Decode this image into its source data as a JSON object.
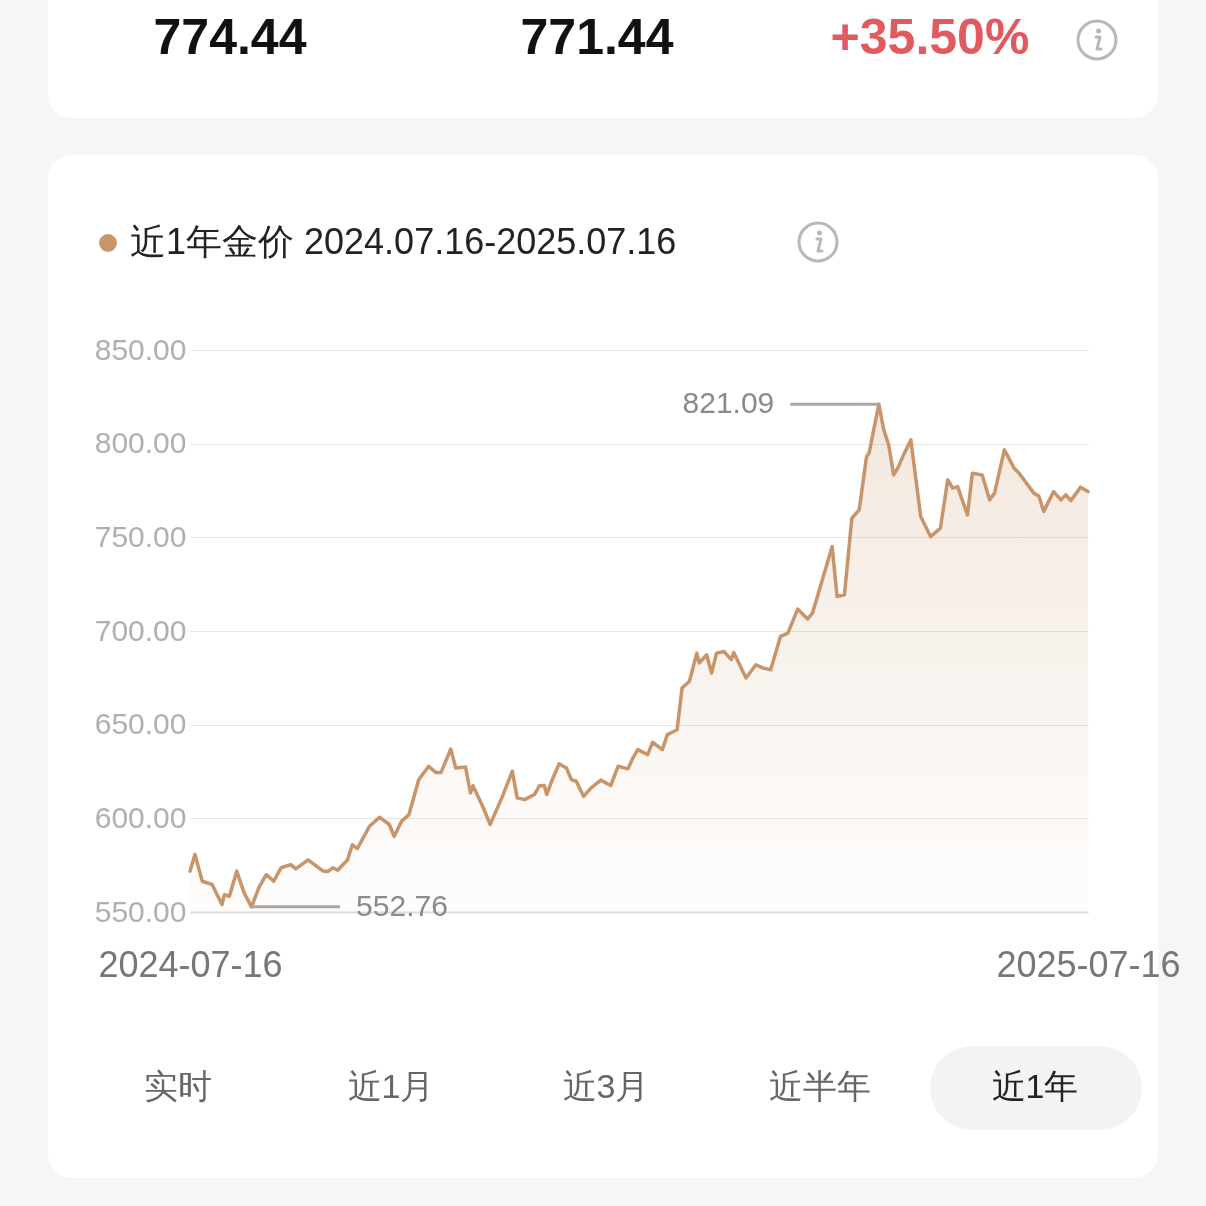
{
  "chart_data": {
    "type": "area",
    "x": [
      "2024-07-16",
      "2024-07-18",
      "2024-07-21",
      "2024-07-25",
      "2024-07-29",
      "2024-07-30",
      "2024-08-01",
      "2024-08-04",
      "2024-08-07",
      "2024-08-10",
      "2024-08-13",
      "2024-08-16",
      "2024-08-19",
      "2024-08-22",
      "2024-08-26",
      "2024-08-28",
      "2024-09-02",
      "2024-09-08",
      "2024-09-10",
      "2024-09-12",
      "2024-09-14",
      "2024-09-18",
      "2024-09-20",
      "2024-09-22",
      "2024-09-27",
      "2024-10-01",
      "2024-10-05",
      "2024-10-07",
      "2024-10-10",
      "2024-10-13",
      "2024-10-17",
      "2024-10-21",
      "2024-10-24",
      "2024-10-26",
      "2024-10-30",
      "2024-11-01",
      "2024-11-05",
      "2024-11-07",
      "2024-11-08",
      "2024-11-12",
      "2024-11-15",
      "2024-11-20",
      "2024-11-24",
      "2024-11-26",
      "2024-11-29",
      "2024-12-03",
      "2024-12-05",
      "2024-12-07",
      "2024-12-08",
      "2024-12-10",
      "2024-12-13",
      "2024-12-16",
      "2024-12-18",
      "2024-12-20",
      "2024-12-23",
      "2024-12-26",
      "2024-12-30",
      "2025-01-03",
      "2025-01-06",
      "2025-01-10",
      "2025-01-12",
      "2025-01-14",
      "2025-01-18",
      "2025-01-20",
      "2025-01-24",
      "2025-01-26",
      "2025-01-30",
      "2025-02-01",
      "2025-02-04",
      "2025-02-07",
      "2025-02-08",
      "2025-02-11",
      "2025-02-13",
      "2025-02-15",
      "2025-02-18",
      "2025-02-21",
      "2025-02-22",
      "2025-02-27",
      "2025-03-03",
      "2025-03-06",
      "2025-03-09",
      "2025-03-13",
      "2025-03-16",
      "2025-03-20",
      "2025-03-24",
      "2025-03-26",
      "2025-04-01",
      "2025-04-03",
      "2025-04-05",
      "2025-04-08",
      "2025-04-11",
      "2025-04-14",
      "2025-04-17",
      "2025-04-18",
      "2025-04-22",
      "2025-04-24",
      "2025-04-26",
      "2025-04-28",
      "2025-04-30",
      "2025-05-02",
      "2025-05-05",
      "2025-05-09",
      "2025-05-13",
      "2025-05-17",
      "2025-05-20",
      "2025-05-22",
      "2025-05-24",
      "2025-05-28",
      "2025-05-30",
      "2025-06-03",
      "2025-06-06",
      "2025-06-08",
      "2025-06-12",
      "2025-06-16",
      "2025-06-18",
      "2025-06-24",
      "2025-06-26",
      "2025-06-28",
      "2025-07-02",
      "2025-07-05",
      "2025-07-07",
      "2025-07-09",
      "2025-07-13",
      "2025-07-16"
    ],
    "series": [
      {
        "name": "近1年金价 2024.07.16-2025.07.16",
        "color": "#c8956a",
        "values": [
          571.8,
          580.7,
          566.4,
          564.7,
          554,
          559.3,
          558.4,
          571.8,
          560.2,
          552.76,
          563,
          570,
          566.4,
          573.6,
          575.3,
          573,
          577.8,
          571.9,
          571.6,
          573.6,
          572.3,
          577.8,
          585.9,
          583.8,
          595.8,
          600.6,
          596.7,
          590.4,
          598.4,
          602,
          620.7,
          627.8,
          624.4,
          624.4,
          637,
          626.9,
          627.4,
          613.6,
          617.4,
          606.3,
          596.7,
          611.7,
          625.2,
          610.9,
          610,
          612.7,
          617.4,
          617.5,
          612.7,
          619.8,
          629.1,
          626.9,
          620.7,
          619.8,
          611.7,
          616.3,
          620.4,
          617.5,
          627.8,
          626.4,
          632.2,
          636.7,
          634,
          640.6,
          636.7,
          644.7,
          647.3,
          669.6,
          673.2,
          688.2,
          682.9,
          687.3,
          677.6,
          688.2,
          689.1,
          684.7,
          688.5,
          674.9,
          682,
          680.2,
          679.3,
          697.1,
          698.9,
          711.7,
          706.4,
          709.5,
          736.2,
          745.1,
          718.4,
          719.3,
          760.2,
          764.7,
          793.1,
          794.9,
          821.09,
          807.3,
          799.3,
          783.3,
          787.8,
          794,
          802,
          761.1,
          750.4,
          754.9,
          780.7,
          776.3,
          777.1,
          762,
          784.2,
          783.3,
          770,
          773.6,
          796.7,
          786.9,
          784.2,
          773.6,
          772.1,
          763.8,
          774.4,
          770,
          772.7,
          769.6,
          776.8,
          774.44
        ]
      }
    ],
    "xlim": [
      "2024-07-16",
      "2025-07-16"
    ],
    "xticks": [
      "2024-07-16",
      "2025-07-16"
    ],
    "ylim": [
      550,
      850
    ],
    "yticks": [
      {
        "value": 550,
        "label": "550.00"
      },
      {
        "value": 600,
        "label": "600.00"
      },
      {
        "value": 650,
        "label": "650.00"
      },
      {
        "value": 700,
        "label": "700.00"
      },
      {
        "value": 750,
        "label": "750.00"
      },
      {
        "value": 800,
        "label": "800.00"
      },
      {
        "value": 850,
        "label": "850.00"
      }
    ],
    "grid": "y",
    "legend": "top left",
    "annotations": [
      "821.09",
      "552.76",
      "774.44",
      "771.44",
      "+35.50%",
      "实时",
      "近1月",
      "近3月",
      "近半年",
      "近1年"
    ]
  }
}
